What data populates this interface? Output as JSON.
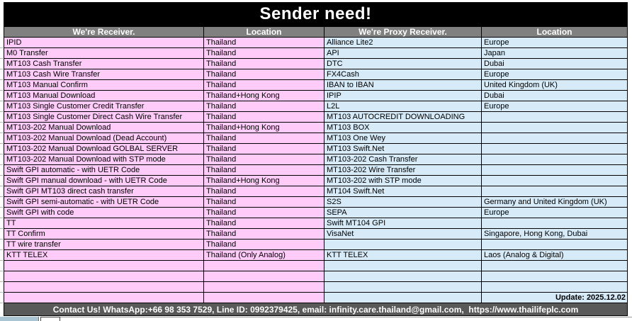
{
  "title": "Sender need!",
  "table": {
    "columns": [
      {
        "label": "We're Receiver."
      },
      {
        "label": "Location"
      },
      {
        "label": "We're Proxy Receiver."
      },
      {
        "label": "Location"
      }
    ],
    "rows": [
      {
        "receiver": "IPID",
        "receiver_location": "Thailand",
        "proxy": "Alliance Lite2",
        "proxy_location": "Europe"
      },
      {
        "receiver": "M0 Transfer",
        "receiver_location": "Thailand",
        "proxy": "API",
        "proxy_location": "Japan"
      },
      {
        "receiver": "MT103 Cash Transfer",
        "receiver_location": "Thailand",
        "proxy": "DTC",
        "proxy_location": "Dubai"
      },
      {
        "receiver": "MT103 Cash Wire Transfer",
        "receiver_location": "Thailand",
        "proxy": "FX4Cash",
        "proxy_location": "Europe"
      },
      {
        "receiver": "MT103 Manual Confirm",
        "receiver_location": "Thailand",
        "proxy": "IBAN to IBAN",
        "proxy_location": "United Kingdom (UK)"
      },
      {
        "receiver": "MT103 Manual Download",
        "receiver_location": "Thailand+Hong Kong",
        "proxy": "IPIP",
        "proxy_location": "Dubai"
      },
      {
        "receiver": "MT103 Single Customer Credit Transfer",
        "receiver_location": "Thailand",
        "proxy": "L2L",
        "proxy_location": "Europe"
      },
      {
        "receiver": "MT103 Single Customer Direct Cash Wire Transfer",
        "receiver_location": "Thailand",
        "proxy": "MT103 AUTOCREDIT DOWNLOADING",
        "proxy_location": ""
      },
      {
        "receiver": "MT103-202 Manual Download",
        "receiver_location": "Thailand+Hong Kong",
        "proxy": "MT103 BOX",
        "proxy_location": ""
      },
      {
        "receiver": "MT103-202 Manual Download (Dead Account)",
        "receiver_location": "Thailand",
        "proxy": "MT103 One Wey",
        "proxy_location": ""
      },
      {
        "receiver": "MT103-202 Manual Download GOLBAL SERVER",
        "receiver_location": "Thailand",
        "proxy": "MT103 Swift.Net",
        "proxy_location": ""
      },
      {
        "receiver": "MT103-202 Manual Download with STP mode",
        "receiver_location": "Thailand",
        "proxy": "MT103-202 Cash Transfer",
        "proxy_location": ""
      },
      {
        "receiver": "Swift GPI automatic - with UETR Code",
        "receiver_location": "Thailand",
        "proxy": "MT103-202 Wire Transfer",
        "proxy_location": ""
      },
      {
        "receiver": "Swift GPI manual download - with UETR Code",
        "receiver_location": "Thailand+Hong Kong",
        "proxy": "MT103-202 with STP mode",
        "proxy_location": ""
      },
      {
        "receiver": "Swift GPI MT103 direct cash transfer",
        "receiver_location": "Thailand",
        "proxy": "MT104 Swift.Net",
        "proxy_location": ""
      },
      {
        "receiver": "Swift GPI semi-automatic - with UETR Code",
        "receiver_location": "Thailand",
        "proxy": "S2S",
        "proxy_location": "Germany and United Kingdom (UK)"
      },
      {
        "receiver": "Swift GPI with code",
        "receiver_location": "Thailand",
        "proxy": "SEPA",
        "proxy_location": "Europe"
      },
      {
        "receiver": "TT",
        "receiver_location": "Thailand",
        "proxy": "Swift MT104 GPI",
        "proxy_location": ""
      },
      {
        "receiver": "TT Confirm",
        "receiver_location": "Thailand",
        "proxy": "VisaNet",
        "proxy_location": "Singapore, Hong Kong, Dubai"
      },
      {
        "receiver": "TT wire transfer",
        "receiver_location": "Thailand",
        "proxy": "",
        "proxy_location": ""
      },
      {
        "receiver": "KTT TELEX",
        "receiver_location": "Thailand (Only Analog)",
        "proxy": "KTT TELEX",
        "proxy_location": "Laos (Analog & Digital)"
      },
      {
        "receiver": "",
        "receiver_location": "",
        "proxy": "",
        "proxy_location": ""
      },
      {
        "receiver": "",
        "receiver_location": "",
        "proxy": "",
        "proxy_location": ""
      },
      {
        "receiver": "",
        "receiver_location": "",
        "proxy": "",
        "proxy_location": ""
      },
      {
        "receiver": "",
        "receiver_location": "",
        "proxy": "",
        "proxy_location": "Update: 2025.12.02",
        "is_update_row": true
      }
    ]
  },
  "footer": {
    "text": "Contact Us! WhatsApp:+66 98 353 7529, Line ID: 0992379425, email: infinity.care.thailand@gmail.com,  https://www.thailifeplc.com"
  },
  "colors": {
    "title_bg": "#000000",
    "header_bg": "#808080",
    "receiver_bg": "#FFCCFA",
    "proxy_bg": "#D6EAF8",
    "footer_bg": "#595959",
    "grid_line": "#000000"
  }
}
